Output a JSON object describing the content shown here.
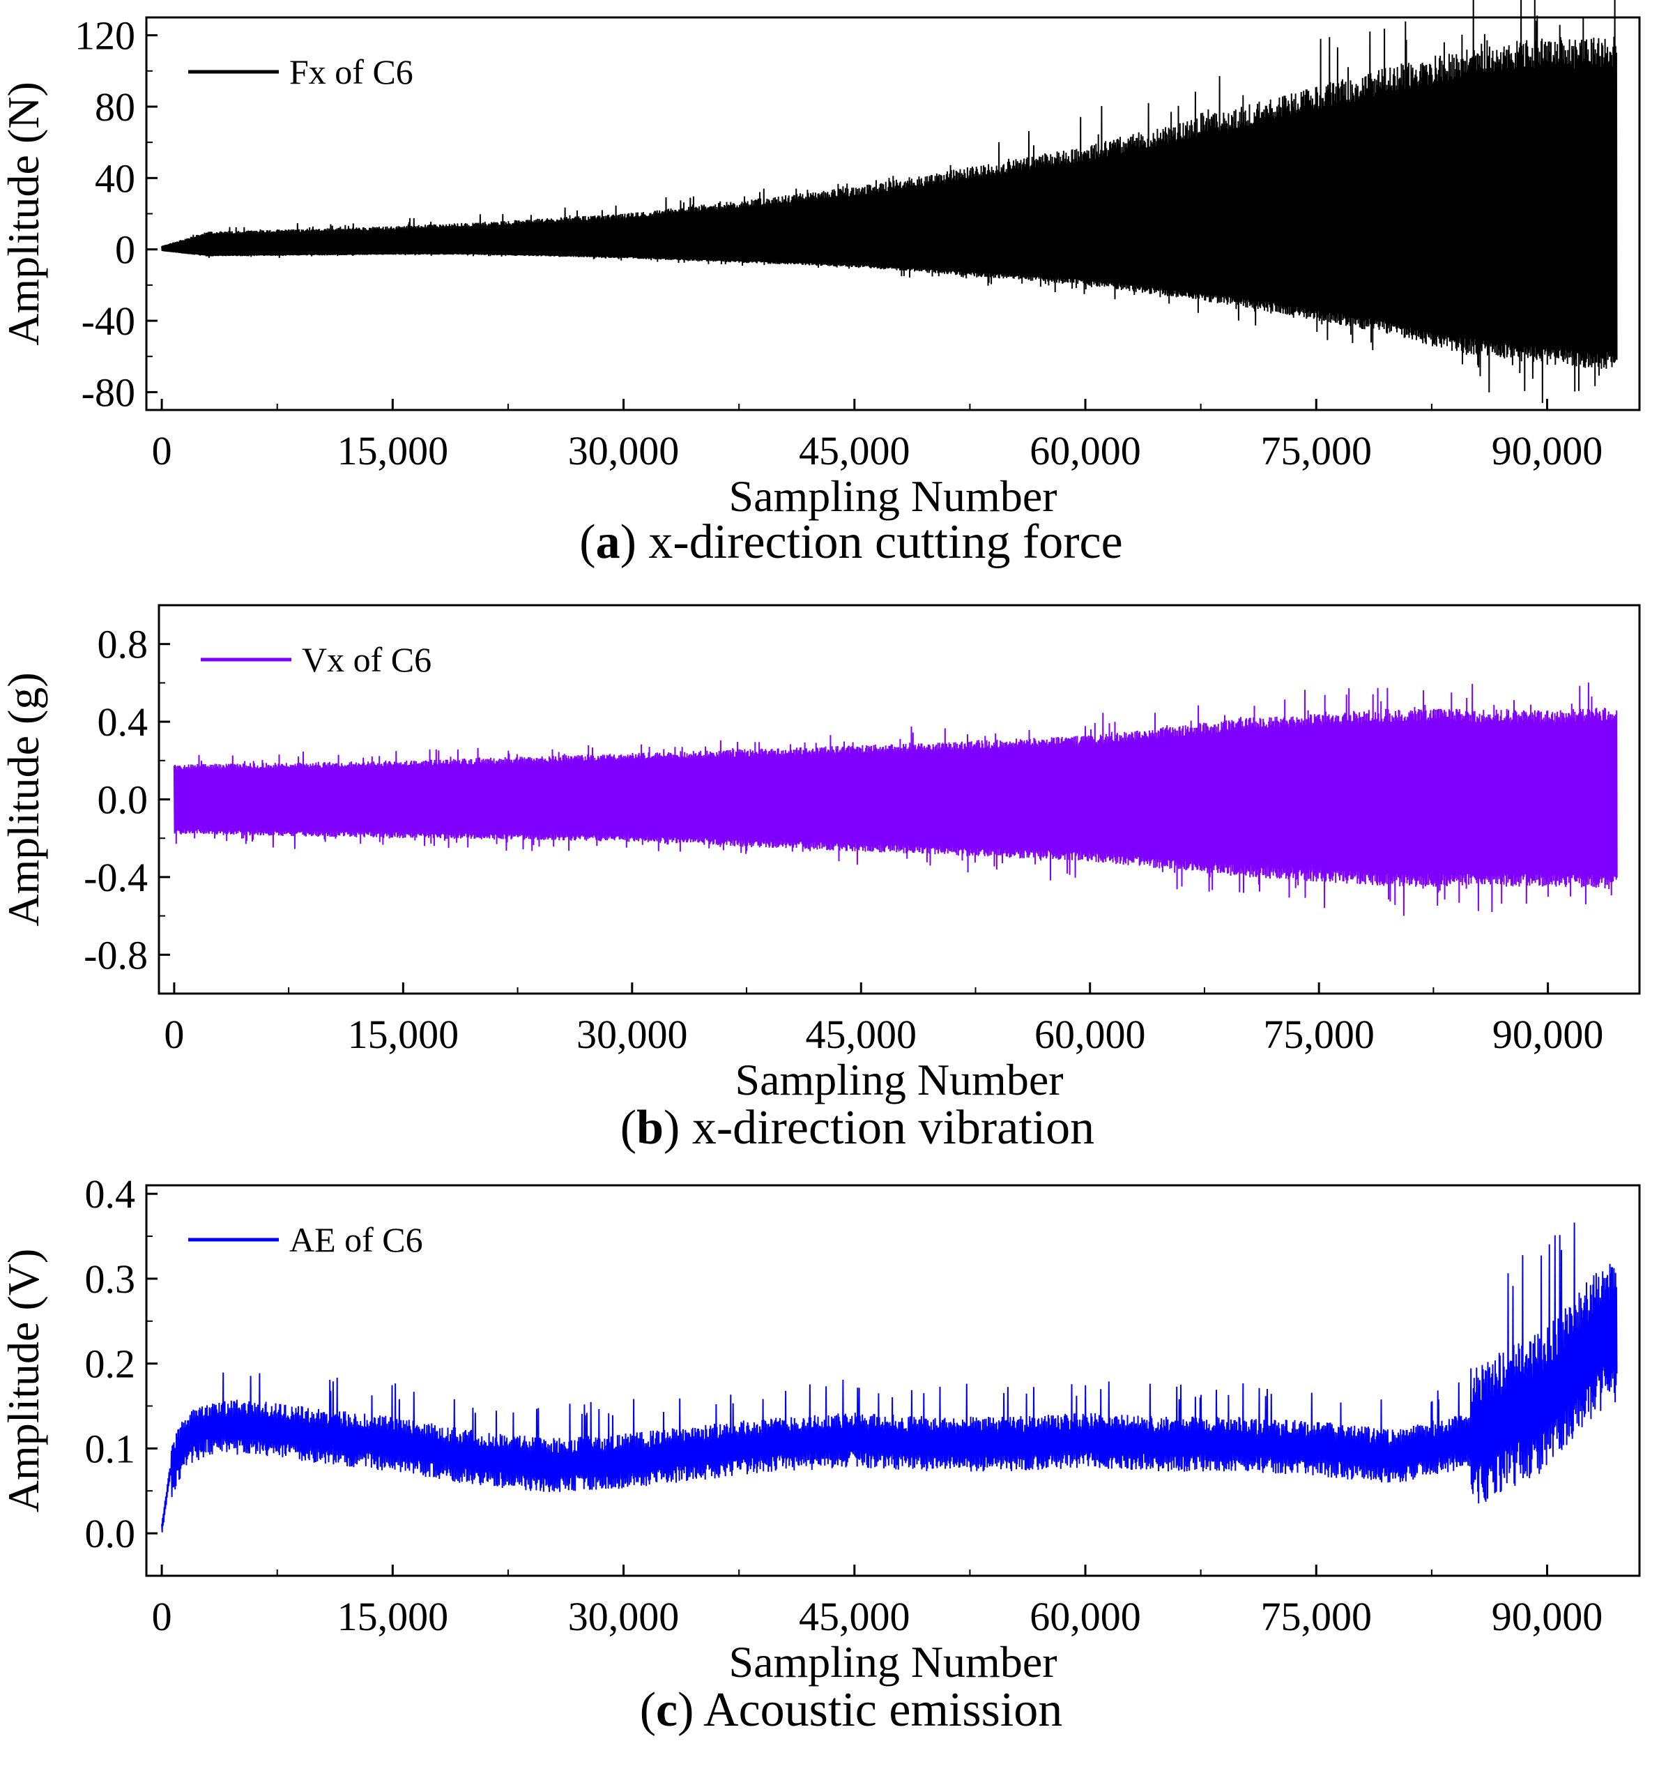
{
  "chart_data": [
    {
      "type": "line",
      "panel_id": "a",
      "caption_label": "a",
      "caption_text": "x-direction cutting force",
      "xlabel": "Sampling Number",
      "ylabel": "Amplitude (N)",
      "xlim": [
        -1000,
        96000
      ],
      "ylim": [
        -90,
        130
      ],
      "xticks": [
        0,
        15000,
        30000,
        45000,
        60000,
        75000,
        90000
      ],
      "xtick_labels": [
        "0",
        "15,000",
        "30,000",
        "45,000",
        "60,000",
        "75,000",
        "90,000"
      ],
      "yticks": [
        -80,
        -40,
        0,
        40,
        80,
        120
      ],
      "ytick_labels": [
        "-80",
        "-40",
        "0",
        "40",
        "80",
        "120"
      ],
      "legend_position": "top-left",
      "series": [
        {
          "name": "Fx of C6",
          "color": "#000000",
          "envelope": {
            "x": [
              0,
              3000,
              15000,
              20000,
              30000,
              45000,
              60000,
              70000,
              80000,
              84000,
              86000,
              90000,
              94500
            ],
            "upper": [
              2,
              10,
              13,
              15,
              20,
              35,
              58,
              80,
              103,
              112,
              116,
              119,
              120
            ],
            "lower": [
              -1,
              -4,
              -3,
              -3,
              -5,
              -10,
              -20,
              -32,
              -48,
              -58,
              -60,
              -65,
              -68
            ]
          }
        }
      ]
    },
    {
      "type": "line",
      "panel_id": "b",
      "caption_label": "b",
      "caption_text": "x-direction vibration",
      "xlabel": "Sampling Number",
      "ylabel": "Amplitude (g)",
      "xlim": [
        -1000,
        96000
      ],
      "ylim": [
        -1.0,
        1.0
      ],
      "xticks": [
        0,
        15000,
        30000,
        45000,
        60000,
        75000,
        90000
      ],
      "xtick_labels": [
        "0",
        "15,000",
        "30,000",
        "45,000",
        "60,000",
        "75,000",
        "90,000"
      ],
      "yticks": [
        -0.8,
        -0.4,
        0.0,
        0.4,
        0.8
      ],
      "ytick_labels": [
        "-0.8",
        "-0.4",
        "0.0",
        "0.4",
        "0.8"
      ],
      "legend_position": "top-left",
      "series": [
        {
          "name": "Vx of C6",
          "color": "#7f00ff",
          "envelope": {
            "x": [
              0,
              15000,
              30000,
              45000,
              60000,
              70000,
              80000,
              90000,
              94500
            ],
            "upper": [
              0.18,
              0.2,
              0.24,
              0.28,
              0.33,
              0.42,
              0.47,
              0.46,
              0.48
            ],
            "lower": [
              -0.18,
              -0.2,
              -0.22,
              -0.27,
              -0.32,
              -0.4,
              -0.45,
              -0.45,
              -0.46
            ]
          }
        }
      ]
    },
    {
      "type": "line",
      "panel_id": "c",
      "caption_label": "c",
      "caption_text": "Acoustic emission",
      "xlabel": "Sampling Number",
      "ylabel": "Amplitude (V)",
      "xlim": [
        -1000,
        96000
      ],
      "ylim": [
        -0.05,
        0.41
      ],
      "xticks": [
        0,
        15000,
        30000,
        45000,
        60000,
        75000,
        90000
      ],
      "xtick_labels": [
        "0",
        "15,000",
        "30,000",
        "45,000",
        "60,000",
        "75,000",
        "90,000"
      ],
      "yticks": [
        0.0,
        0.1,
        0.2,
        0.3,
        0.4
      ],
      "ytick_labels": [
        "0.0",
        "0.1",
        "0.2",
        "0.3",
        "0.4"
      ],
      "legend_position": "top-left",
      "series": [
        {
          "name": "AE of C6",
          "color": "#0000ff",
          "trend": {
            "x": [
              0,
              500,
              1500,
              3000,
              6000,
              10000,
              15000,
              20000,
              25000,
              30000,
              35000,
              40000,
              45000,
              50000,
              55000,
              60000,
              65000,
              70000,
              75000,
              80000,
              85000,
              88000,
              90000,
              92000,
              93000,
              94500
            ],
            "y": [
              0.005,
              0.07,
              0.11,
              0.125,
              0.125,
              0.115,
              0.105,
              0.09,
              0.08,
              0.085,
              0.095,
              0.105,
              0.11,
              0.105,
              0.105,
              0.11,
              0.105,
              0.105,
              0.1,
              0.09,
              0.11,
              0.14,
              0.16,
              0.2,
              0.22,
              0.24
            ]
          },
          "spread": 0.025
        }
      ]
    }
  ]
}
